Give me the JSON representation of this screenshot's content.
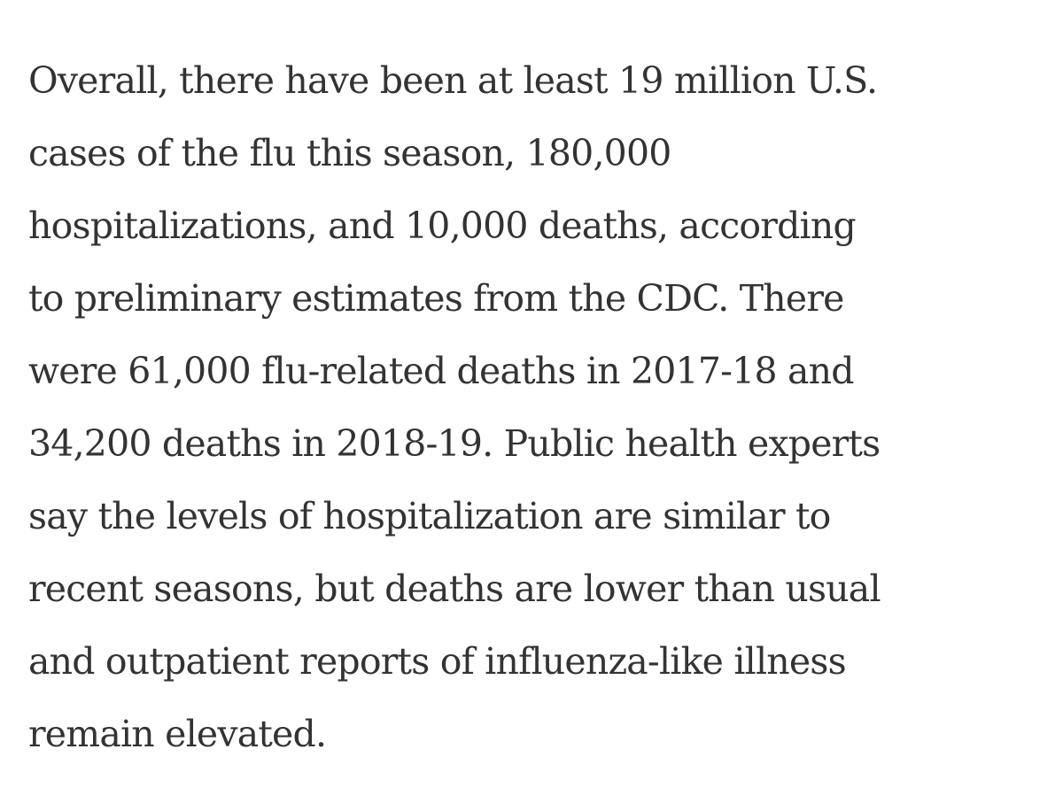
{
  "paragraph": {
    "lines": [
      "Overall, there have been at least 19 million U.S.",
      "cases of the flu this season, 180,000",
      "hospitalizations, and 10,000 deaths, according",
      "to preliminary estimates from the CDC. There",
      "were 61,000 flu-related deaths in 2017-18 and",
      "34,200 deaths in 2018-19. Public health experts",
      "say the levels of hospitalization are similar to",
      "recent seasons, but deaths are lower than usual",
      "and outpatient reports of influenza-like illness",
      "remain elevated."
    ]
  },
  "colors": {
    "text": "#333333",
    "background": "#ffffff"
  }
}
